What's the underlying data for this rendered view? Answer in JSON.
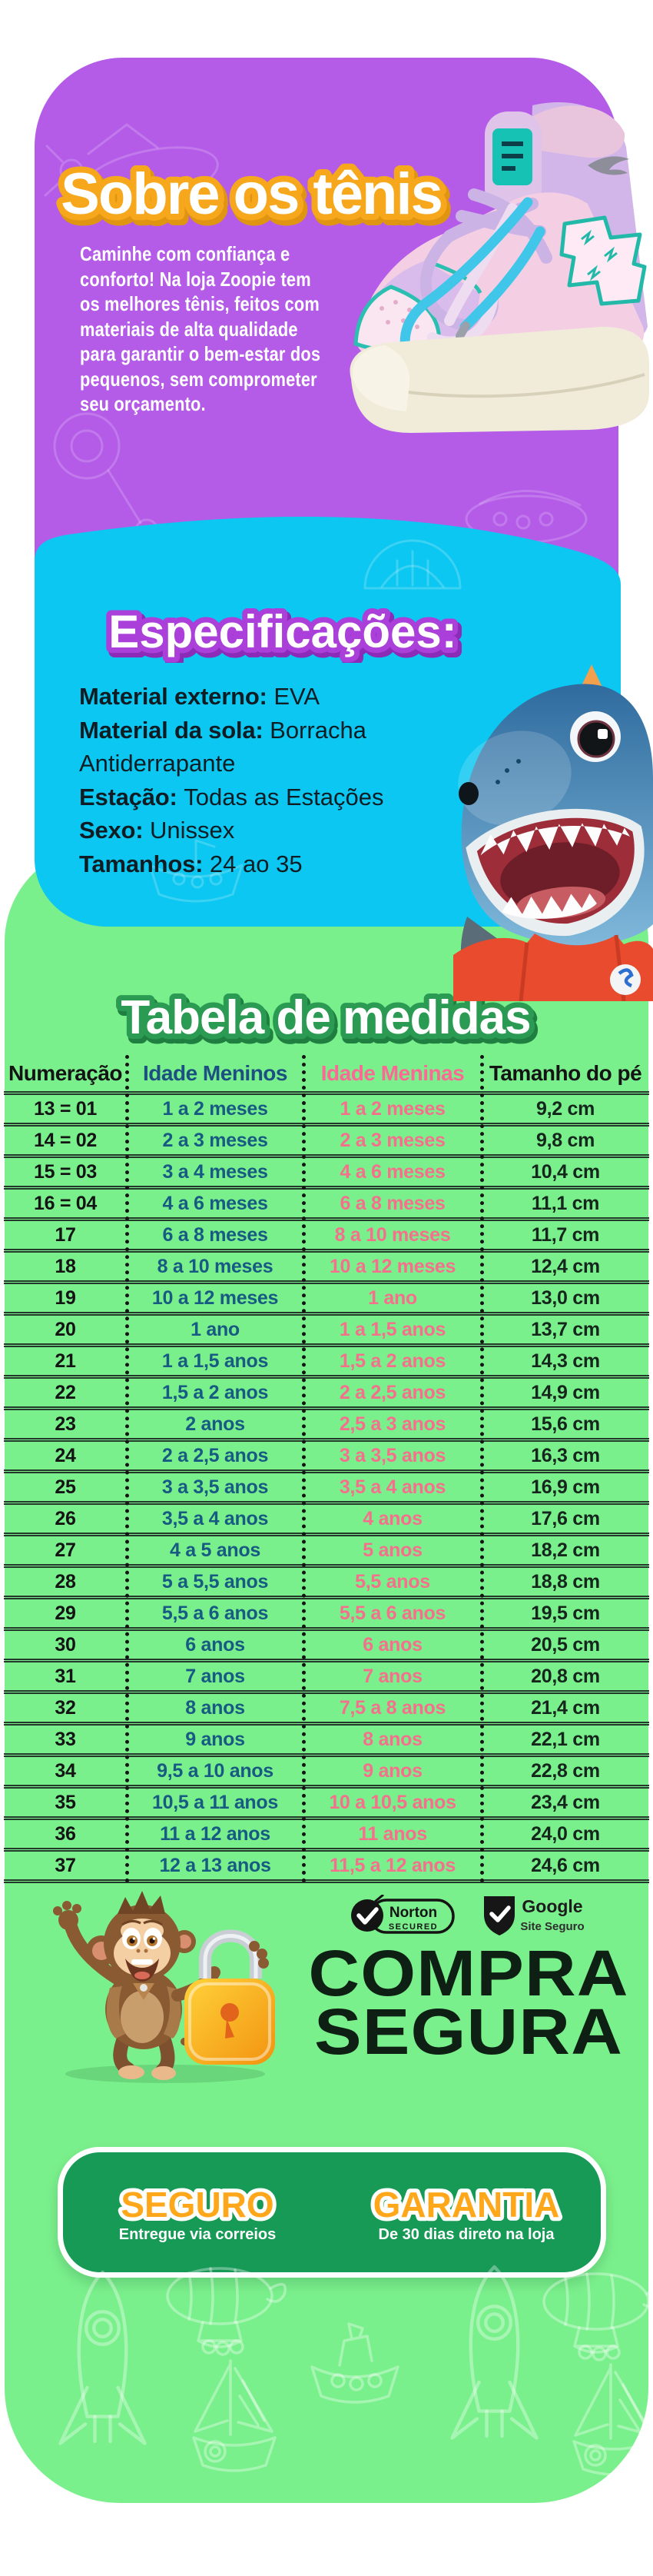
{
  "colors": {
    "purple_bg": "#b45ce8",
    "cyan_bg": "#0cc7f1",
    "green_bg": "#7af08c",
    "guarantee_box_green": "#189a57",
    "title_orange": "#f6a71c",
    "boys_blue": "#175a82",
    "girls_pink": "#f4708d"
  },
  "about": {
    "title": "Sobre os tênis",
    "p1": "Caminhe com confiança e conforto! Na loja ",
    "brand": "Zoopie",
    "p2": " tem os melhores tênis, feitos com materiais de alta qualidade para garantir o bem-estar dos pequenos, sem comprometer seu orçamento."
  },
  "specs": {
    "title": "Especificações:",
    "items": [
      {
        "label": "Material externo:",
        "value": "EVA"
      },
      {
        "label": "Material da sola:",
        "value": "Borracha Antiderrapante"
      },
      {
        "label": "Estação:",
        "value": "Todas as Estações"
      },
      {
        "label": "Sexo:",
        "value": "Unissex"
      },
      {
        "label": "Tamanhos:",
        "value": "24 ao 35"
      }
    ]
  },
  "size_table": {
    "title": "Tabela de medidas",
    "columns": [
      "Numeração",
      "Idade Meninos",
      "Idade Meninas",
      "Tamanho do pé"
    ],
    "rows": [
      [
        "13 = 01",
        "1 a 2 meses",
        "1 a 2 meses",
        "9,2 cm"
      ],
      [
        "14 = 02",
        "2 a 3 meses",
        "2 a 3 meses",
        "9,8 cm"
      ],
      [
        "15 = 03",
        "3 a 4 meses",
        "4 a 6 meses",
        "10,4 cm"
      ],
      [
        "16 = 04",
        "4 a 6 meses",
        "6 a 8 meses",
        "11,1 cm"
      ],
      [
        "17",
        "6 a 8 meses",
        "8 a 10 meses",
        "11,7 cm"
      ],
      [
        "18",
        "8 a 10 meses",
        "10 a 12 meses",
        "12,4 cm"
      ],
      [
        "19",
        "10 a 12 meses",
        "1 ano",
        "13,0 cm"
      ],
      [
        "20",
        "1 ano",
        "1 a 1,5 anos",
        "13,7 cm"
      ],
      [
        "21",
        "1 a 1,5 anos",
        "1,5 a 2 anos",
        "14,3 cm"
      ],
      [
        "22",
        "1,5 a 2 anos",
        "2 a 2,5 anos",
        "14,9 cm"
      ],
      [
        "23",
        "2 anos",
        "2,5 a 3 anos",
        "15,6 cm"
      ],
      [
        "24",
        "2 a 2,5 anos",
        "3 a 3,5 anos",
        "16,3 cm"
      ],
      [
        "25",
        "3 a 3,5 anos",
        "3,5 a 4 anos",
        "16,9 cm"
      ],
      [
        "26",
        "3,5 a 4 anos",
        "4 anos",
        "17,6 cm"
      ],
      [
        "27",
        "4 a 5 anos",
        "5 anos",
        "18,2 cm"
      ],
      [
        "28",
        "5 a 5,5 anos",
        "5,5 anos",
        "18,8 cm"
      ],
      [
        "29",
        "5,5 a 6 anos",
        "5,5 a 6 anos",
        "19,5 cm"
      ],
      [
        "30",
        "6 anos",
        "6 anos",
        "20,5 cm"
      ],
      [
        "31",
        "7 anos",
        "7 anos",
        "20,8 cm"
      ],
      [
        "32",
        "8 anos",
        "7,5 a 8 anos",
        "21,4 cm"
      ],
      [
        "33",
        "9 anos",
        "8 anos",
        "22,1 cm"
      ],
      [
        "34",
        "9,5 a 10 anos",
        "9 anos",
        "22,8 cm"
      ],
      [
        "35",
        "10,5 a 11 anos",
        "10 a 10,5 anos",
        "23,4 cm"
      ],
      [
        "36",
        "11 a 12 anos",
        "11 anos",
        "24,0 cm"
      ],
      [
        "37",
        "12 a 13 anos",
        "11,5 a 12 anos",
        "24,6 cm"
      ]
    ]
  },
  "security": {
    "badges": [
      {
        "name": "Norton Secured",
        "line1": "Norton",
        "line2": "SECURED"
      },
      {
        "name": "Google Site Seguro",
        "line1": "Google",
        "line2": "Site Seguro"
      }
    ],
    "headline1": "COMPRA",
    "headline2": "SEGURA"
  },
  "guarantee": {
    "left": {
      "title": "SEGURO",
      "subtitle": "Entregue via correios"
    },
    "right": {
      "title": "GARANTIA",
      "subtitle": "De 30 dias direto na loja"
    }
  }
}
